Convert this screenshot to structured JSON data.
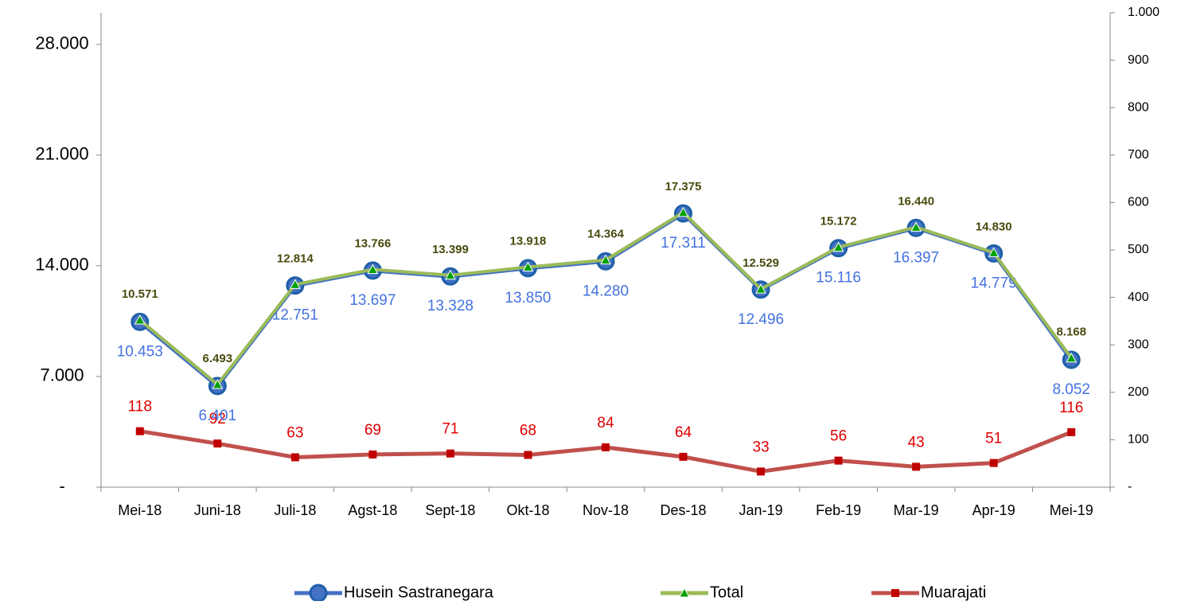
{
  "chart_data": {
    "type": "line",
    "categories": [
      "Mei-18",
      "Juni-18",
      "Juli-18",
      "Agst-18",
      "Sept-18",
      "Okt-18",
      "Nov-18",
      "Des-18",
      "Jan-19",
      "Feb-19",
      "Mar-19",
      "Apr-19",
      "Mei-19"
    ],
    "series": [
      {
        "name": "Husein Sastranegara",
        "color": "#4472c4",
        "axis": "y",
        "values": [
          10453,
          6401,
          12751,
          13697,
          13328,
          13850,
          14280,
          17311,
          12496,
          15116,
          16397,
          14779,
          8052
        ],
        "value_labels": [
          "10.453",
          "6.401",
          "12.751",
          "13.697",
          "13.328",
          "13.850",
          "14.280",
          "17.311",
          "12.496",
          "15.116",
          "16.397",
          "14.779",
          "8.052"
        ]
      },
      {
        "name": "Total",
        "color": "#9bbb59",
        "axis": "y",
        "values": [
          10571,
          6493,
          12814,
          13766,
          13399,
          13918,
          14364,
          17375,
          12529,
          15172,
          16440,
          14830,
          8168
        ],
        "value_labels": [
          "10.571",
          "6.493",
          "12.814",
          "13.766",
          "13.399",
          "13.918",
          "14.364",
          "17.375",
          "12.529",
          "15.172",
          "16.440",
          "14.830",
          "8.168"
        ]
      },
      {
        "name": "Muarajati",
        "color": "#c0504d",
        "axis": "y2",
        "values": [
          118,
          92,
          63,
          69,
          71,
          68,
          84,
          64,
          33,
          56,
          43,
          51,
          116
        ]
      }
    ],
    "ylim": [
      0,
      30000
    ],
    "yticks": [
      {
        "value": 0,
        "label": "-"
      },
      {
        "value": 7000,
        "label": "7.000"
      },
      {
        "value": 14000,
        "label": "14.000"
      },
      {
        "value": 21000,
        "label": "21.000"
      },
      {
        "value": 28000,
        "label": "28.000"
      }
    ],
    "y2lim": [
      0,
      1000
    ],
    "y2ticks": [
      {
        "value": 0,
        "label": "-"
      },
      100,
      200,
      300,
      400,
      500,
      600,
      700,
      800,
      900,
      {
        "value": 1000,
        "label": "1.000"
      }
    ],
    "legend": "bottom"
  }
}
